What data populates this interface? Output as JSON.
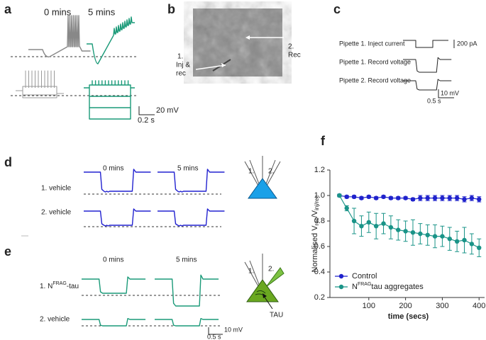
{
  "panels": {
    "a": {
      "label": "a",
      "times": [
        "0 mins",
        "5 mins"
      ],
      "scale_v": "20 mV",
      "scale_t": "0.2 s"
    },
    "b": {
      "label": "b",
      "left": [
        "1.",
        "Inj &",
        "rec"
      ],
      "right": [
        "2.",
        "Rec"
      ]
    },
    "c": {
      "label": "c",
      "rows": [
        "Pipette 1. Inject current",
        "Pipette 1. Record voltage",
        "Pipette 2. Record voltage"
      ],
      "scale_i": "200 pA",
      "scale_v": "10 mV",
      "scale_t": "0.5 s"
    },
    "d": {
      "label": "d",
      "times": [
        "0 mins",
        "5 mins"
      ],
      "rows": [
        "1. vehicle",
        "2. vehicle"
      ],
      "pipettes": [
        "1.",
        "2."
      ]
    },
    "e": {
      "label": "e",
      "times": [
        "0 mins",
        "5 mins"
      ],
      "row1": [
        "1. N",
        "FRAG",
        "-tau"
      ],
      "row2": "2. vehicle",
      "pipettes": [
        "1.",
        "2."
      ],
      "marker": "TAU",
      "scale_v": "10 mV",
      "scale_t": "0.5 s"
    },
    "f": {
      "label": "f"
    }
  },
  "chart_data": {
    "type": "line",
    "ylabel": [
      "Normalised V",
      "rec",
      "/V",
      "inj/rec"
    ],
    "xlabel": "time (secs)",
    "x": [
      20,
      40,
      60,
      80,
      100,
      120,
      140,
      160,
      180,
      200,
      220,
      240,
      260,
      280,
      300,
      320,
      340,
      360,
      380,
      400
    ],
    "series": [
      {
        "name": "Control",
        "color": "#1f22cc",
        "values": [
          1.0,
          0.99,
          0.99,
          0.98,
          0.99,
          0.98,
          0.99,
          0.98,
          0.98,
          0.98,
          0.97,
          0.98,
          0.98,
          0.98,
          0.98,
          0.98,
          0.98,
          0.97,
          0.98,
          0.97
        ],
        "errors": [
          0.01,
          0.01,
          0.01,
          0.01,
          0.01,
          0.01,
          0.01,
          0.01,
          0.01,
          0.01,
          0.01,
          0.02,
          0.02,
          0.02,
          0.02,
          0.02,
          0.02,
          0.02,
          0.02,
          0.02
        ]
      },
      {
        "name": [
          "N",
          "FRAG",
          "tau aggregates"
        ],
        "color": "#1a9488",
        "values": [
          1.0,
          0.9,
          0.8,
          0.76,
          0.79,
          0.76,
          0.78,
          0.75,
          0.73,
          0.72,
          0.71,
          0.7,
          0.69,
          0.68,
          0.68,
          0.66,
          0.64,
          0.65,
          0.62,
          0.59
        ],
        "errors": [
          0.01,
          0.02,
          0.1,
          0.08,
          0.08,
          0.1,
          0.08,
          0.09,
          0.08,
          0.08,
          0.1,
          0.08,
          0.08,
          0.09,
          0.08,
          0.09,
          0.08,
          0.1,
          0.08,
          0.07
        ]
      }
    ],
    "xlim": [
      0,
      415
    ],
    "ylim": [
      0.2,
      1.2
    ],
    "xticks": [
      100,
      200,
      300,
      400
    ],
    "yticks": [
      0.2,
      0.4,
      0.6,
      0.8,
      {
        "value": 1,
        "label": "1.0"
      },
      1.2
    ],
    "legend": "lower left"
  }
}
